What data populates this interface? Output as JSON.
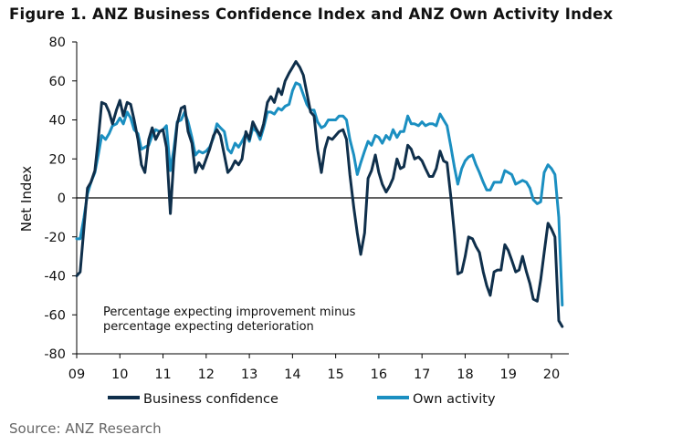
{
  "title": "Figure 1. ANZ Business Confidence Index and ANZ Own Activity Index",
  "source": "Source: ANZ Research",
  "colors": {
    "business_confidence": "#0f2f4b",
    "own_activity": "#1b8fc1",
    "zero_line": "#000000"
  },
  "chart_data": {
    "type": "line",
    "ylabel": "Net Index",
    "xlabel": "",
    "ylim": [
      -80,
      80
    ],
    "yticks": [
      80,
      60,
      40,
      20,
      0,
      -20,
      -40,
      -60,
      -80
    ],
    "xlim": [
      2009,
      2020.3
    ],
    "xticks": [
      {
        "value": 2009,
        "label": "09"
      },
      {
        "value": 2010,
        "label": "10"
      },
      {
        "value": 2011,
        "label": "11"
      },
      {
        "value": 2012,
        "label": "12"
      },
      {
        "value": 2013,
        "label": "13"
      },
      {
        "value": 2014,
        "label": "14"
      },
      {
        "value": 2015,
        "label": "15"
      },
      {
        "value": 2016,
        "label": "16"
      },
      {
        "value": 2017,
        "label": "17"
      },
      {
        "value": 2018,
        "label": "18"
      },
      {
        "value": 2019,
        "label": "19"
      },
      {
        "value": 2020,
        "label": "20"
      }
    ],
    "annotation": [
      "Percentage expecting improvement minus",
      "percentage expecting deterioration"
    ],
    "series": [
      {
        "name": "Business confidence",
        "points": [
          [
            2009.0,
            -40
          ],
          [
            2009.08,
            -38
          ],
          [
            2009.17,
            -15
          ],
          [
            2009.25,
            5
          ],
          [
            2009.33,
            8
          ],
          [
            2009.42,
            14
          ],
          [
            2009.5,
            30
          ],
          [
            2009.58,
            49
          ],
          [
            2009.67,
            48
          ],
          [
            2009.75,
            44
          ],
          [
            2009.83,
            38
          ],
          [
            2009.92,
            45
          ],
          [
            2010.0,
            50
          ],
          [
            2010.08,
            42
          ],
          [
            2010.17,
            49
          ],
          [
            2010.25,
            48
          ],
          [
            2010.33,
            40
          ],
          [
            2010.42,
            30
          ],
          [
            2010.5,
            17
          ],
          [
            2010.58,
            13
          ],
          [
            2010.67,
            30
          ],
          [
            2010.75,
            36
          ],
          [
            2010.83,
            30
          ],
          [
            2010.92,
            34
          ],
          [
            2011.0,
            35
          ],
          [
            2011.08,
            26
          ],
          [
            2011.17,
            -8
          ],
          [
            2011.25,
            20
          ],
          [
            2011.33,
            38
          ],
          [
            2011.42,
            46
          ],
          [
            2011.5,
            47
          ],
          [
            2011.58,
            34
          ],
          [
            2011.67,
            28
          ],
          [
            2011.75,
            13
          ],
          [
            2011.83,
            18
          ],
          [
            2011.92,
            15
          ],
          [
            2012.0,
            20
          ],
          [
            2012.08,
            25
          ],
          [
            2012.17,
            32
          ],
          [
            2012.25,
            35
          ],
          [
            2012.33,
            32
          ],
          [
            2012.42,
            22
          ],
          [
            2012.5,
            13
          ],
          [
            2012.58,
            15
          ],
          [
            2012.67,
            19
          ],
          [
            2012.75,
            17
          ],
          [
            2012.83,
            20
          ],
          [
            2012.92,
            34
          ],
          [
            2013.0,
            30
          ],
          [
            2013.08,
            39
          ],
          [
            2013.17,
            35
          ],
          [
            2013.25,
            32
          ],
          [
            2013.33,
            38
          ],
          [
            2013.42,
            49
          ],
          [
            2013.5,
            52
          ],
          [
            2013.58,
            49
          ],
          [
            2013.67,
            56
          ],
          [
            2013.75,
            53
          ],
          [
            2013.83,
            60
          ],
          [
            2013.92,
            64
          ],
          [
            2014.0,
            67
          ],
          [
            2014.08,
            70
          ],
          [
            2014.17,
            67
          ],
          [
            2014.25,
            63
          ],
          [
            2014.33,
            54
          ],
          [
            2014.42,
            44
          ],
          [
            2014.5,
            42
          ],
          [
            2014.58,
            25
          ],
          [
            2014.67,
            13
          ],
          [
            2014.75,
            25
          ],
          [
            2014.83,
            31
          ],
          [
            2014.92,
            30
          ],
          [
            2015.0,
            32
          ],
          [
            2015.08,
            34
          ],
          [
            2015.17,
            35
          ],
          [
            2015.25,
            30
          ],
          [
            2015.33,
            12
          ],
          [
            2015.42,
            -5
          ],
          [
            2015.5,
            -18
          ],
          [
            2015.58,
            -29
          ],
          [
            2015.67,
            -18
          ],
          [
            2015.75,
            10
          ],
          [
            2015.83,
            14
          ],
          [
            2015.92,
            22
          ],
          [
            2016.0,
            13
          ],
          [
            2016.08,
            7
          ],
          [
            2016.17,
            3
          ],
          [
            2016.25,
            6
          ],
          [
            2016.33,
            10
          ],
          [
            2016.42,
            20
          ],
          [
            2016.5,
            15
          ],
          [
            2016.58,
            16
          ],
          [
            2016.67,
            27
          ],
          [
            2016.75,
            25
          ],
          [
            2016.83,
            20
          ],
          [
            2016.92,
            21
          ],
          [
            2017.0,
            19
          ],
          [
            2017.08,
            15
          ],
          [
            2017.17,
            11
          ],
          [
            2017.25,
            11
          ],
          [
            2017.33,
            15
          ],
          [
            2017.42,
            24
          ],
          [
            2017.5,
            19
          ],
          [
            2017.58,
            18
          ],
          [
            2017.67,
            0
          ],
          [
            2017.75,
            -18
          ],
          [
            2017.83,
            -39
          ],
          [
            2017.92,
            -38
          ],
          [
            2018.0,
            -30
          ],
          [
            2018.08,
            -20
          ],
          [
            2018.17,
            -21
          ],
          [
            2018.25,
            -25
          ],
          [
            2018.33,
            -28
          ],
          [
            2018.42,
            -38
          ],
          [
            2018.5,
            -45
          ],
          [
            2018.58,
            -50
          ],
          [
            2018.67,
            -38
          ],
          [
            2018.75,
            -37
          ],
          [
            2018.83,
            -37
          ],
          [
            2018.92,
            -24
          ],
          [
            2019.0,
            -27
          ],
          [
            2019.08,
            -32
          ],
          [
            2019.17,
            -38
          ],
          [
            2019.25,
            -37
          ],
          [
            2019.33,
            -30
          ],
          [
            2019.42,
            -38
          ],
          [
            2019.5,
            -44
          ],
          [
            2019.58,
            -52
          ],
          [
            2019.67,
            -53
          ],
          [
            2019.75,
            -42
          ],
          [
            2019.83,
            -28
          ],
          [
            2019.92,
            -13
          ],
          [
            2020.0,
            -16
          ],
          [
            2020.08,
            -20
          ],
          [
            2020.17,
            -63
          ],
          [
            2020.25,
            -66
          ]
        ]
      },
      {
        "name": "Own activity",
        "points": [
          [
            2009.0,
            -21
          ],
          [
            2009.08,
            -21
          ],
          [
            2009.17,
            -10
          ],
          [
            2009.25,
            2
          ],
          [
            2009.33,
            8
          ],
          [
            2009.42,
            13
          ],
          [
            2009.5,
            22
          ],
          [
            2009.58,
            32
          ],
          [
            2009.67,
            30
          ],
          [
            2009.75,
            33
          ],
          [
            2009.83,
            37
          ],
          [
            2009.92,
            38
          ],
          [
            2010.0,
            41
          ],
          [
            2010.08,
            38
          ],
          [
            2010.17,
            44
          ],
          [
            2010.25,
            41
          ],
          [
            2010.33,
            35
          ],
          [
            2010.42,
            33
          ],
          [
            2010.5,
            25
          ],
          [
            2010.58,
            26
          ],
          [
            2010.67,
            27
          ],
          [
            2010.75,
            32
          ],
          [
            2010.83,
            35
          ],
          [
            2010.92,
            34
          ],
          [
            2011.0,
            35
          ],
          [
            2011.08,
            37
          ],
          [
            2011.17,
            14
          ],
          [
            2011.25,
            25
          ],
          [
            2011.33,
            39
          ],
          [
            2011.42,
            40
          ],
          [
            2011.5,
            44
          ],
          [
            2011.58,
            39
          ],
          [
            2011.67,
            31
          ],
          [
            2011.75,
            22
          ],
          [
            2011.83,
            24
          ],
          [
            2011.92,
            23
          ],
          [
            2012.0,
            24
          ],
          [
            2012.08,
            26
          ],
          [
            2012.17,
            31
          ],
          [
            2012.25,
            38
          ],
          [
            2012.33,
            36
          ],
          [
            2012.42,
            34
          ],
          [
            2012.5,
            25
          ],
          [
            2012.58,
            23
          ],
          [
            2012.67,
            28
          ],
          [
            2012.75,
            26
          ],
          [
            2012.83,
            29
          ],
          [
            2012.92,
            33
          ],
          [
            2013.0,
            29
          ],
          [
            2013.08,
            36
          ],
          [
            2013.17,
            34
          ],
          [
            2013.25,
            30
          ],
          [
            2013.33,
            36
          ],
          [
            2013.42,
            44
          ],
          [
            2013.5,
            44
          ],
          [
            2013.58,
            43
          ],
          [
            2013.67,
            46
          ],
          [
            2013.75,
            45
          ],
          [
            2013.83,
            47
          ],
          [
            2013.92,
            48
          ],
          [
            2014.0,
            55
          ],
          [
            2014.08,
            59
          ],
          [
            2014.17,
            58
          ],
          [
            2014.25,
            53
          ],
          [
            2014.33,
            48
          ],
          [
            2014.42,
            45
          ],
          [
            2014.5,
            45
          ],
          [
            2014.58,
            39
          ],
          [
            2014.67,
            36
          ],
          [
            2014.75,
            37
          ],
          [
            2014.83,
            40
          ],
          [
            2014.92,
            40
          ],
          [
            2015.0,
            40
          ],
          [
            2015.08,
            42
          ],
          [
            2015.17,
            42
          ],
          [
            2015.25,
            40
          ],
          [
            2015.33,
            30
          ],
          [
            2015.42,
            22
          ],
          [
            2015.5,
            12
          ],
          [
            2015.58,
            18
          ],
          [
            2015.67,
            24
          ],
          [
            2015.75,
            29
          ],
          [
            2015.83,
            27
          ],
          [
            2015.92,
            32
          ],
          [
            2016.0,
            31
          ],
          [
            2016.08,
            28
          ],
          [
            2016.17,
            32
          ],
          [
            2016.25,
            30
          ],
          [
            2016.33,
            35
          ],
          [
            2016.42,
            31
          ],
          [
            2016.5,
            34
          ],
          [
            2016.58,
            34
          ],
          [
            2016.67,
            42
          ],
          [
            2016.75,
            38
          ],
          [
            2016.83,
            38
          ],
          [
            2016.92,
            37
          ],
          [
            2017.0,
            39
          ],
          [
            2017.08,
            37
          ],
          [
            2017.17,
            38
          ],
          [
            2017.25,
            38
          ],
          [
            2017.33,
            37
          ],
          [
            2017.42,
            43
          ],
          [
            2017.5,
            40
          ],
          [
            2017.58,
            37
          ],
          [
            2017.67,
            26
          ],
          [
            2017.75,
            16
          ],
          [
            2017.83,
            7
          ],
          [
            2017.92,
            15
          ],
          [
            2018.0,
            19
          ],
          [
            2018.08,
            21
          ],
          [
            2018.17,
            22
          ],
          [
            2018.25,
            17
          ],
          [
            2018.33,
            13
          ],
          [
            2018.42,
            8
          ],
          [
            2018.5,
            4
          ],
          [
            2018.58,
            4
          ],
          [
            2018.67,
            8
          ],
          [
            2018.75,
            8
          ],
          [
            2018.83,
            8
          ],
          [
            2018.92,
            14
          ],
          [
            2019.0,
            13
          ],
          [
            2019.08,
            12
          ],
          [
            2019.17,
            7
          ],
          [
            2019.25,
            8
          ],
          [
            2019.33,
            9
          ],
          [
            2019.42,
            8
          ],
          [
            2019.5,
            5
          ],
          [
            2019.58,
            -1
          ],
          [
            2019.67,
            -3
          ],
          [
            2019.75,
            -2
          ],
          [
            2019.83,
            13
          ],
          [
            2019.92,
            17
          ],
          [
            2020.0,
            15
          ],
          [
            2020.08,
            12
          ],
          [
            2020.17,
            -10
          ],
          [
            2020.25,
            -55
          ]
        ]
      }
    ]
  }
}
